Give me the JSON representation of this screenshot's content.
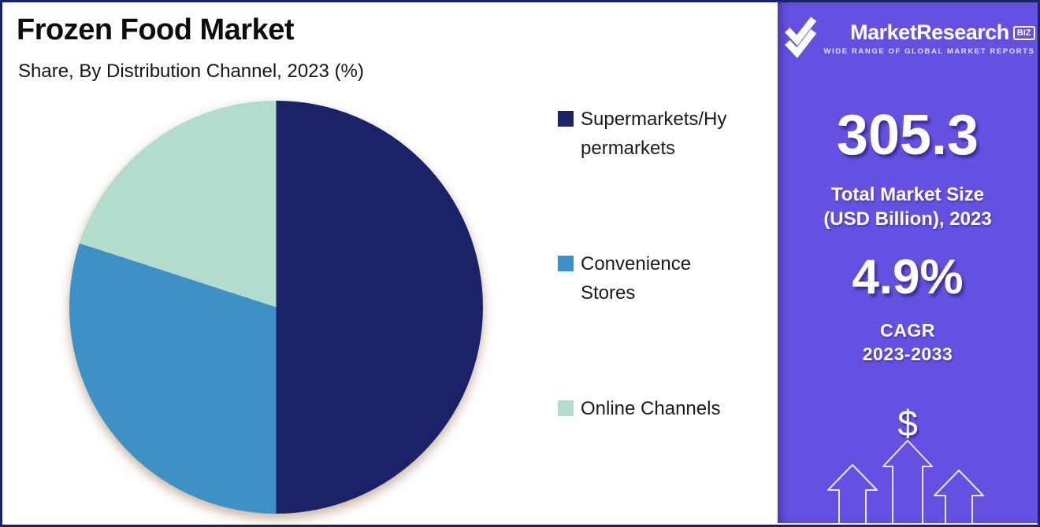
{
  "page": {
    "title": "Frozen Food Market",
    "subtitle": "Share, By Distribution Channel, 2023 (%)"
  },
  "chart_data": {
    "type": "pie",
    "title": "Frozen Food Market",
    "subtitle": "Share, By Distribution Channel, 2023 (%)",
    "unit": "%",
    "year": "2023",
    "categories": [
      "Supermarkets/Hypermarkets",
      "Convenience Stores",
      "Online Channels"
    ],
    "values": [
      50,
      30,
      20
    ],
    "colors": [
      "#1a2368",
      "#3e91c5",
      "#b2dccb"
    ],
    "start_angle_deg": 0,
    "direction": "clockwise",
    "legend_position": "right"
  },
  "legend": {
    "items": [
      {
        "label": "Supermarkets/Hypermarkets",
        "lines": [
          "Supermarkets/Hy",
          "permarkets"
        ],
        "color": "#1a2368"
      },
      {
        "label": "Convenience Stores",
        "lines": [
          "Convenience",
          "Stores"
        ],
        "color": "#3e91c5"
      },
      {
        "label": "Online Channels",
        "lines": [
          "Online Channels"
        ],
        "color": "#b2dccb"
      }
    ]
  },
  "sidebar": {
    "background": "#6451e1",
    "logo": {
      "brand": "MarketResearch",
      "badge": "BIZ",
      "tagline": "WIDE RANGE OF GLOBAL MARKET REPORTS",
      "icon": "double-check-icon"
    },
    "market_size": {
      "value": "305.3",
      "label_lines": [
        "Total Market Size",
        "(USD Billion), 2023"
      ]
    },
    "cagr": {
      "value": "4.9%",
      "label_lines": [
        "CAGR",
        "2023-2033"
      ]
    },
    "dollar_symbol": "$"
  },
  "colors": {
    "border": "#1a2368",
    "navy": "#1a2368",
    "blue": "#3e91c5",
    "mint": "#b2dccb",
    "purple": "#6451e1"
  }
}
